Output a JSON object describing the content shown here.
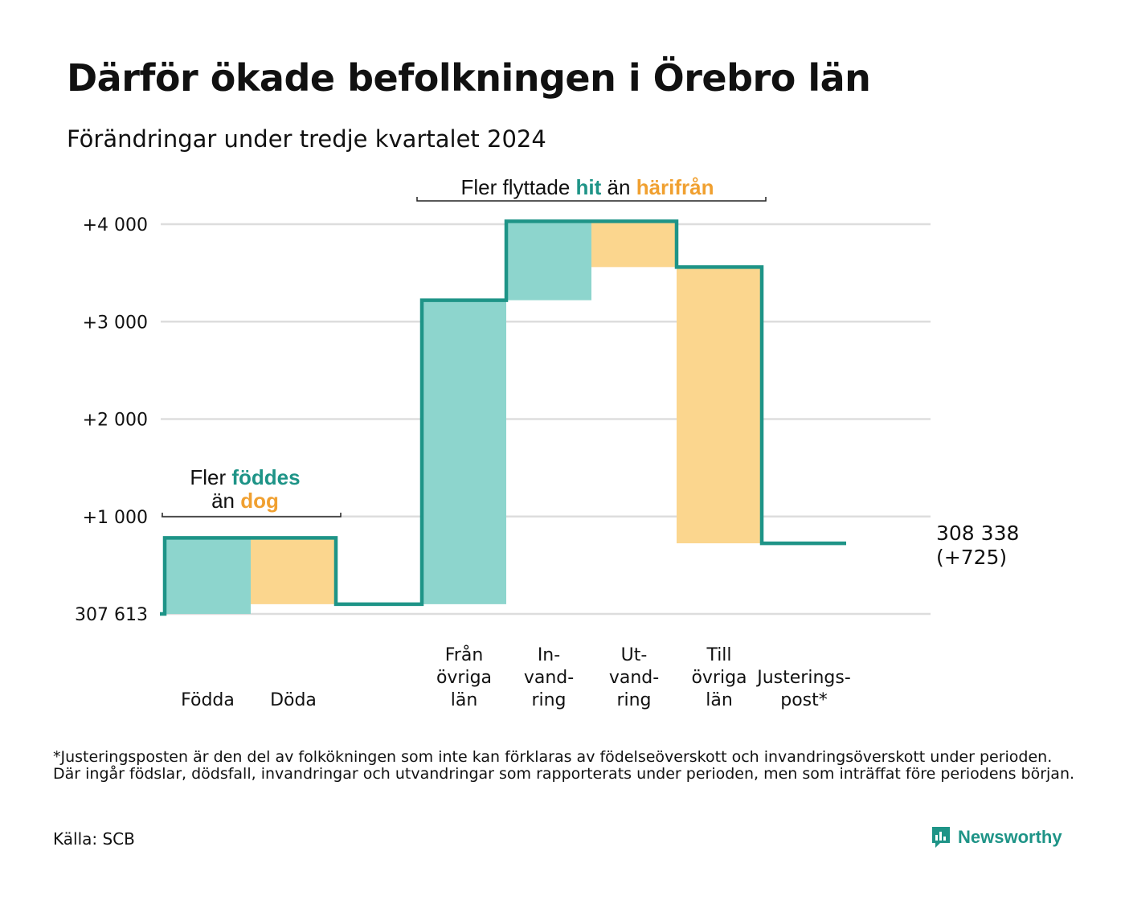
{
  "header": {
    "title": "Därför ökade befolkningen i Örebro län",
    "subtitle": "Förändringar under tredje kvartalet 2024"
  },
  "chart_data": {
    "type": "waterfall",
    "baseline": 307613,
    "baseline_label": "307 613",
    "final": 308338,
    "end_label": [
      "308 338",
      "(+725)"
    ],
    "y_unit": "change from baseline",
    "ylim": [
      0,
      4000
    ],
    "y_ticks": [
      {
        "value": 0,
        "label": "307 613"
      },
      {
        "value": 1000,
        "label": "+1 000"
      },
      {
        "value": 2000,
        "label": "+2 000"
      },
      {
        "value": 3000,
        "label": "+3 000"
      },
      {
        "value": 4000,
        "label": "+4 000"
      }
    ],
    "grid": true,
    "steps": [
      {
        "label": [
          "Födda"
        ],
        "value": 780,
        "kind": "in"
      },
      {
        "label": [
          "Döda"
        ],
        "value": -680,
        "kind": "out"
      },
      {
        "label": [
          "Från",
          "övriga",
          "län"
        ],
        "value": 3120,
        "kind": "in"
      },
      {
        "label": [
          "In-",
          "vand-",
          "ring"
        ],
        "value": 810,
        "kind": "in"
      },
      {
        "label": [
          "Ut-",
          "vand-",
          "ring"
        ],
        "value": -470,
        "kind": "out"
      },
      {
        "label": [
          "Till",
          "övriga",
          "län"
        ],
        "value": -2835,
        "kind": "out"
      },
      {
        "label": [
          "Justerings-",
          "post*"
        ],
        "value": 0,
        "kind": "flat"
      }
    ],
    "colors": {
      "in_fill": "#8dd5cd",
      "out_fill": "#fbd68e",
      "line": "#1e9487",
      "highlight_in": "#1e9487",
      "highlight_out": "#f0a030",
      "grid": "#dddddd"
    },
    "annotations": {
      "births": {
        "parts": [
          {
            "line": 0,
            "text": "Fler ",
            "color": "text"
          },
          {
            "line": 0,
            "text": "föddes",
            "color": "in"
          },
          {
            "line": 1,
            "text": "än ",
            "color": "text"
          },
          {
            "line": 1,
            "text": "dog",
            "color": "out"
          }
        ]
      },
      "migration": {
        "parts": [
          {
            "line": 0,
            "text": "Fler flyttade ",
            "color": "text"
          },
          {
            "line": 0,
            "text": "hit",
            "color": "in"
          },
          {
            "line": 0,
            "text": " än ",
            "color": "text"
          },
          {
            "line": 0,
            "text": "härifrån",
            "color": "out"
          }
        ]
      }
    }
  },
  "footer": {
    "footnote": "*Justeringsposten är den del av folkökningen som inte kan förklaras av födelseöverskott och invandringsöverskott under perioden. Där ingår födslar, dödsfall, invandringar och utvandringar som rapporterats under perioden, men som inträffat före periodens början.",
    "source": "Källa: SCB",
    "brand": "Newsworthy",
    "brand_icon": "bar-chart-speech-bubble-icon"
  }
}
